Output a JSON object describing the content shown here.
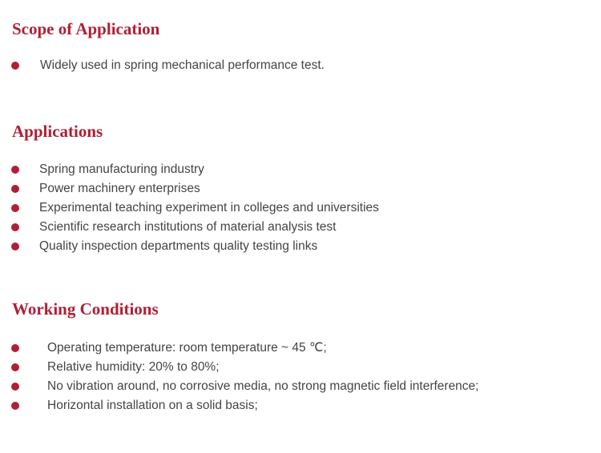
{
  "accent_color": "#b01f35",
  "sections": [
    {
      "title": "Scope of Application",
      "items": [
        "Widely used in spring mechanical performance test."
      ]
    },
    {
      "title": "Applications",
      "items": [
        "Spring manufacturing industry",
        "Power machinery enterprises",
        "Experimental teaching experiment in colleges and universities",
        "Scientific research institutions of material analysis test",
        "Quality inspection departments quality testing links"
      ]
    },
    {
      "title": "Working Conditions",
      "items": [
        "Operating temperature: room temperature ~ 45 ℃;",
        "Relative humidity: 20% to 80%;",
        "No vibration around, no corrosive media, no strong magnetic field interference;",
        "Horizontal installation on a solid basis;"
      ]
    }
  ]
}
